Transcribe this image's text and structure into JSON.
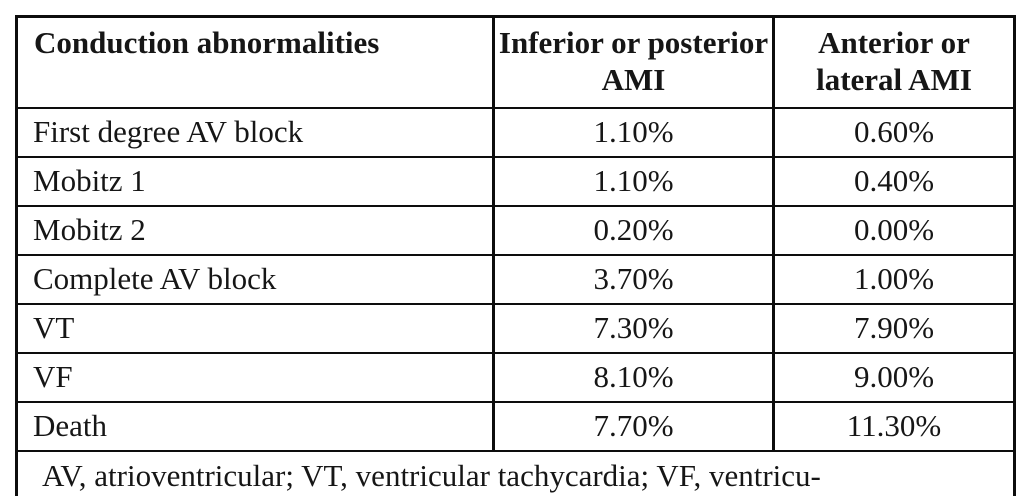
{
  "page": {
    "background": "#ffffff"
  },
  "colors": {
    "text": "#161616",
    "border": "#0d0d0d"
  },
  "table": {
    "columns": [
      {
        "label": "Conduction abnormalities",
        "align": "left"
      },
      {
        "label": "Inferior or posterior AMI",
        "align": "center"
      },
      {
        "label": "Anterior or lateral AMI",
        "align": "center"
      }
    ],
    "rows": [
      {
        "label": "First degree AV block",
        "values": [
          "1.10%",
          "0.60%"
        ]
      },
      {
        "label": "Mobitz 1",
        "values": [
          "1.10%",
          "0.40%"
        ]
      },
      {
        "label": "Mobitz 2",
        "values": [
          "0.20%",
          "0.00%"
        ]
      },
      {
        "label": "Complete AV block",
        "values": [
          "3.70%",
          "1.00%"
        ]
      },
      {
        "label": "VT",
        "values": [
          "7.30%",
          "7.90%"
        ]
      },
      {
        "label": "VF",
        "values": [
          "8.10%",
          "9.00%"
        ]
      },
      {
        "label": "Death",
        "values": [
          "7.70%",
          "11.30%"
        ]
      }
    ],
    "footnote": "AV, atrioventricular; VT, ventricular tachycardia; VF, ventricu-"
  },
  "chart_data": {
    "type": "table",
    "categories": [
      "First degree AV block",
      "Mobitz 1",
      "Mobitz 2",
      "Complete AV block",
      "VT",
      "VF",
      "Death"
    ],
    "series": [
      {
        "name": "Inferior or posterior AMI",
        "values": [
          1.1,
          1.1,
          0.2,
          3.7,
          7.3,
          8.1,
          7.7
        ]
      },
      {
        "name": "Anterior or lateral AMI",
        "values": [
          0.6,
          0.4,
          0.0,
          1.0,
          7.9,
          9.0,
          11.3
        ]
      }
    ],
    "unit": "%",
    "row_header_label": "Conduction abnormalities",
    "footnote": "AV, atrioventricular; VT, ventricular tachycardia; VF, ventricu-"
  }
}
